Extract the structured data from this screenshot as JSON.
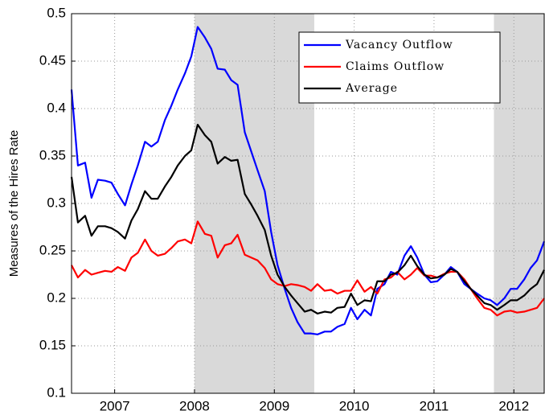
{
  "chart_data": {
    "type": "line",
    "y_label": "Measures of the Hires Rate",
    "x": [
      2006.46,
      2006.54,
      2006.63,
      2006.71,
      2006.79,
      2006.88,
      2006.96,
      2007.04,
      2007.13,
      2007.21,
      2007.29,
      2007.38,
      2007.46,
      2007.54,
      2007.63,
      2007.71,
      2007.79,
      2007.88,
      2007.96,
      2008.04,
      2008.13,
      2008.21,
      2008.29,
      2008.38,
      2008.46,
      2008.54,
      2008.63,
      2008.71,
      2008.79,
      2008.88,
      2008.96,
      2009.04,
      2009.13,
      2009.21,
      2009.29,
      2009.38,
      2009.46,
      2009.54,
      2009.63,
      2009.71,
      2009.79,
      2009.88,
      2009.96,
      2010.04,
      2010.13,
      2010.21,
      2010.29,
      2010.38,
      2010.46,
      2010.54,
      2010.63,
      2010.71,
      2010.79,
      2010.88,
      2010.96,
      2011.04,
      2011.13,
      2011.21,
      2011.29,
      2011.38,
      2011.46,
      2011.54,
      2011.63,
      2011.71,
      2011.79,
      2011.88,
      2011.96,
      2012.04,
      2012.13,
      2012.21,
      2012.29,
      2012.38
    ],
    "series": [
      {
        "name": "Vacancy Outflow",
        "color": "#0000ff",
        "values": [
          0.42,
          0.34,
          0.343,
          0.306,
          0.325,
          0.324,
          0.322,
          0.31,
          0.298,
          0.32,
          0.34,
          0.365,
          0.36,
          0.365,
          0.388,
          0.403,
          0.42,
          0.437,
          0.455,
          0.486,
          0.475,
          0.463,
          0.442,
          0.441,
          0.43,
          0.425,
          0.375,
          0.355,
          0.335,
          0.313,
          0.27,
          0.235,
          0.21,
          0.19,
          0.175,
          0.163,
          0.163,
          0.162,
          0.165,
          0.165,
          0.17,
          0.173,
          0.19,
          0.178,
          0.188,
          0.182,
          0.21,
          0.215,
          0.228,
          0.225,
          0.245,
          0.255,
          0.243,
          0.225,
          0.217,
          0.218,
          0.225,
          0.233,
          0.228,
          0.215,
          0.21,
          0.205,
          0.2,
          0.198,
          0.193,
          0.2,
          0.21,
          0.21,
          0.22,
          0.232,
          0.24,
          0.26
        ]
      },
      {
        "name": "Claims Outflow",
        "color": "#ff0000",
        "values": [
          0.235,
          0.222,
          0.23,
          0.225,
          0.227,
          0.229,
          0.228,
          0.233,
          0.229,
          0.243,
          0.248,
          0.262,
          0.25,
          0.245,
          0.247,
          0.253,
          0.26,
          0.262,
          0.258,
          0.281,
          0.268,
          0.266,
          0.243,
          0.256,
          0.258,
          0.267,
          0.246,
          0.243,
          0.24,
          0.232,
          0.22,
          0.215,
          0.213,
          0.215,
          0.214,
          0.212,
          0.208,
          0.215,
          0.208,
          0.209,
          0.205,
          0.208,
          0.208,
          0.219,
          0.207,
          0.212,
          0.205,
          0.22,
          0.222,
          0.228,
          0.22,
          0.225,
          0.232,
          0.224,
          0.224,
          0.222,
          0.226,
          0.228,
          0.228,
          0.22,
          0.21,
          0.2,
          0.19,
          0.188,
          0.182,
          0.186,
          0.187,
          0.185,
          0.186,
          0.188,
          0.19,
          0.2
        ]
      },
      {
        "name": "Average",
        "color": "#000000",
        "values": [
          0.328,
          0.28,
          0.287,
          0.266,
          0.276,
          0.276,
          0.274,
          0.27,
          0.263,
          0.282,
          0.294,
          0.313,
          0.305,
          0.305,
          0.318,
          0.328,
          0.34,
          0.35,
          0.356,
          0.383,
          0.372,
          0.365,
          0.342,
          0.349,
          0.345,
          0.346,
          0.31,
          0.299,
          0.287,
          0.272,
          0.245,
          0.225,
          0.212,
          0.203,
          0.195,
          0.186,
          0.188,
          0.184,
          0.186,
          0.185,
          0.19,
          0.191,
          0.205,
          0.193,
          0.198,
          0.197,
          0.218,
          0.218,
          0.225,
          0.227,
          0.235,
          0.245,
          0.234,
          0.225,
          0.221,
          0.222,
          0.225,
          0.231,
          0.228,
          0.218,
          0.21,
          0.203,
          0.195,
          0.193,
          0.188,
          0.193,
          0.198,
          0.198,
          0.203,
          0.21,
          0.215,
          0.23
        ]
      }
    ],
    "xlim": [
      2006.46,
      2012.38
    ],
    "xticks": [
      2007,
      2008,
      2009,
      2010,
      2011,
      2012
    ],
    "ylim": [
      0.1,
      0.5
    ],
    "yticks": [
      0.1,
      0.15,
      0.2,
      0.25,
      0.3,
      0.35,
      0.4,
      0.45,
      0.5
    ],
    "grid": true,
    "legend": "upper right",
    "shaded_regions": [
      [
        2008.0,
        2009.5
      ],
      [
        2011.75,
        2012.38
      ]
    ],
    "shade_color": "#d9d9d9"
  }
}
